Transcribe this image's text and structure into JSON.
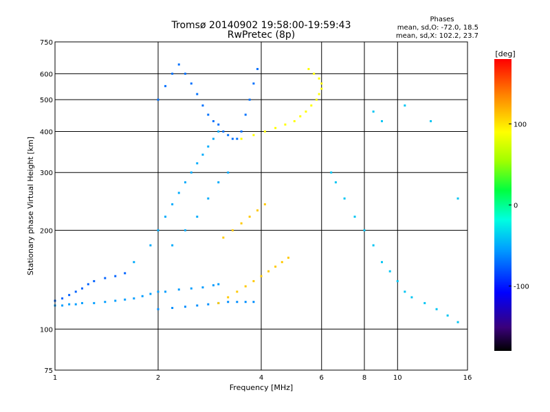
{
  "chart_data": {
    "type": "scatter",
    "title": "Tromsø 20140902 19:58:00-19:59:43",
    "subtitle": "RwPretec (8p)",
    "xlabel": "Frequency [MHz]",
    "ylabel": "Stationary phase Virtual Height [km]",
    "x_scale": "log",
    "y_scale": "log",
    "xlim": [
      1,
      16
    ],
    "ylim": [
      75,
      750
    ],
    "x_ticks": [
      1,
      2,
      4,
      6,
      8,
      10,
      16
    ],
    "x_tick_labels": [
      "1",
      "2",
      "4",
      "6",
      "8",
      "10",
      "16"
    ],
    "y_ticks": [
      75,
      100,
      200,
      300,
      400,
      500,
      600,
      750
    ],
    "y_tick_labels": [
      "75",
      "100",
      "200",
      "300",
      "400",
      "500",
      "600",
      "750"
    ],
    "grid": true,
    "info": {
      "heading": "Phases",
      "line_o": "mean, sd,O: -72.0, 18.5",
      "line_x": "mean, sd,X: 102.2, 23.7"
    },
    "colorbar": {
      "label": "[deg]",
      "range": [
        -180,
        180
      ],
      "ticks": [
        100,
        0,
        -100
      ],
      "tick_labels": [
        "100",
        "0",
        "-100"
      ]
    },
    "series": [
      {
        "role": "low-frequency-trace",
        "phase": -55,
        "points": [
          [
            1.0,
            118
          ],
          [
            1.05,
            118
          ],
          [
            1.1,
            119
          ],
          [
            1.15,
            119
          ],
          [
            1.2,
            120
          ],
          [
            1.3,
            120
          ],
          [
            1.4,
            121
          ],
          [
            1.5,
            122
          ],
          [
            1.6,
            123
          ],
          [
            1.7,
            124
          ],
          [
            1.8,
            126
          ],
          [
            1.9,
            128
          ],
          [
            2.0,
            130
          ],
          [
            2.1,
            130
          ],
          [
            2.3,
            132
          ],
          [
            2.5,
            133
          ],
          [
            2.7,
            134
          ],
          [
            2.9,
            136
          ],
          [
            3.0,
            137
          ]
        ]
      },
      {
        "role": "low-frequency-trace-2",
        "phase": -75,
        "points": [
          [
            1.0,
            122
          ],
          [
            1.05,
            124
          ],
          [
            1.1,
            127
          ],
          [
            1.15,
            130
          ],
          [
            1.2,
            133
          ],
          [
            1.25,
            137
          ],
          [
            1.3,
            140
          ],
          [
            1.4,
            143
          ],
          [
            1.5,
            145
          ],
          [
            1.6,
            148
          ]
        ]
      },
      {
        "role": "e-layer",
        "phase": -60,
        "points": [
          [
            2.0,
            115
          ],
          [
            2.2,
            116
          ],
          [
            2.4,
            117
          ],
          [
            2.6,
            118
          ],
          [
            2.8,
            119
          ],
          [
            3.0,
            120
          ],
          [
            3.2,
            121
          ],
          [
            3.4,
            121
          ],
          [
            3.6,
            121
          ],
          [
            3.8,
            121
          ]
        ]
      },
      {
        "role": "lower-f-layer-cluster",
        "phase": -50,
        "points": [
          [
            1.7,
            160
          ],
          [
            1.9,
            180
          ],
          [
            2.0,
            200
          ],
          [
            2.1,
            220
          ],
          [
            2.2,
            240
          ],
          [
            2.3,
            260
          ],
          [
            2.4,
            280
          ],
          [
            2.5,
            300
          ],
          [
            2.6,
            320
          ],
          [
            2.7,
            340
          ],
          [
            2.8,
            360
          ],
          [
            2.9,
            380
          ],
          [
            3.0,
            400
          ],
          [
            2.2,
            180
          ],
          [
            2.4,
            200
          ],
          [
            2.6,
            220
          ],
          [
            2.8,
            250
          ],
          [
            3.0,
            280
          ],
          [
            3.2,
            300
          ]
        ]
      },
      {
        "role": "upper-f-layer-cluster",
        "phase": -70,
        "points": [
          [
            2.0,
            500
          ],
          [
            2.1,
            550
          ],
          [
            2.2,
            600
          ],
          [
            2.3,
            640
          ],
          [
            2.4,
            600
          ],
          [
            2.5,
            560
          ],
          [
            2.6,
            520
          ],
          [
            2.7,
            480
          ],
          [
            2.8,
            450
          ],
          [
            2.9,
            430
          ],
          [
            3.0,
            420
          ],
          [
            3.1,
            400
          ],
          [
            3.2,
            390
          ],
          [
            3.3,
            380
          ],
          [
            3.4,
            380
          ],
          [
            3.5,
            400
          ],
          [
            3.6,
            450
          ],
          [
            3.7,
            500
          ],
          [
            3.8,
            560
          ],
          [
            3.9,
            620
          ]
        ]
      },
      {
        "role": "x-mode-trace-lower",
        "phase": 110,
        "points": [
          [
            3.0,
            120
          ],
          [
            3.2,
            125
          ],
          [
            3.4,
            130
          ],
          [
            3.6,
            135
          ],
          [
            3.8,
            140
          ],
          [
            4.0,
            145
          ],
          [
            4.2,
            150
          ],
          [
            4.4,
            155
          ],
          [
            4.6,
            160
          ],
          [
            4.8,
            165
          ],
          [
            3.1,
            190
          ],
          [
            3.3,
            200
          ],
          [
            3.5,
            210
          ],
          [
            3.7,
            220
          ],
          [
            3.9,
            230
          ],
          [
            4.1,
            240
          ]
        ]
      },
      {
        "role": "x-mode-trace-upper",
        "phase": 90,
        "points": [
          [
            3.5,
            380
          ],
          [
            3.8,
            390
          ],
          [
            4.1,
            400
          ],
          [
            4.4,
            410
          ],
          [
            4.7,
            420
          ],
          [
            5.0,
            430
          ],
          [
            5.2,
            445
          ],
          [
            5.4,
            460
          ],
          [
            5.6,
            480
          ],
          [
            5.8,
            500
          ],
          [
            5.9,
            520
          ],
          [
            6.0,
            540
          ],
          [
            6.0,
            560
          ],
          [
            5.9,
            580
          ],
          [
            5.7,
            600
          ],
          [
            5.5,
            620
          ]
        ]
      },
      {
        "role": "sparse-high-frequency-echoes",
        "phase": -40,
        "points": [
          [
            6.4,
            300
          ],
          [
            6.6,
            280
          ],
          [
            7.0,
            250
          ],
          [
            7.5,
            220
          ],
          [
            8.0,
            200
          ],
          [
            8.5,
            180
          ],
          [
            9.0,
            160
          ],
          [
            9.5,
            150
          ],
          [
            10.0,
            140
          ],
          [
            10.5,
            130
          ],
          [
            11.0,
            125
          ],
          [
            12.0,
            120
          ],
          [
            13.0,
            115
          ],
          [
            14.0,
            110
          ],
          [
            15.0,
            105
          ],
          [
            8.5,
            460
          ],
          [
            9.0,
            430
          ],
          [
            10.5,
            480
          ],
          [
            12.5,
            430
          ],
          [
            15.0,
            250
          ]
        ]
      }
    ]
  }
}
